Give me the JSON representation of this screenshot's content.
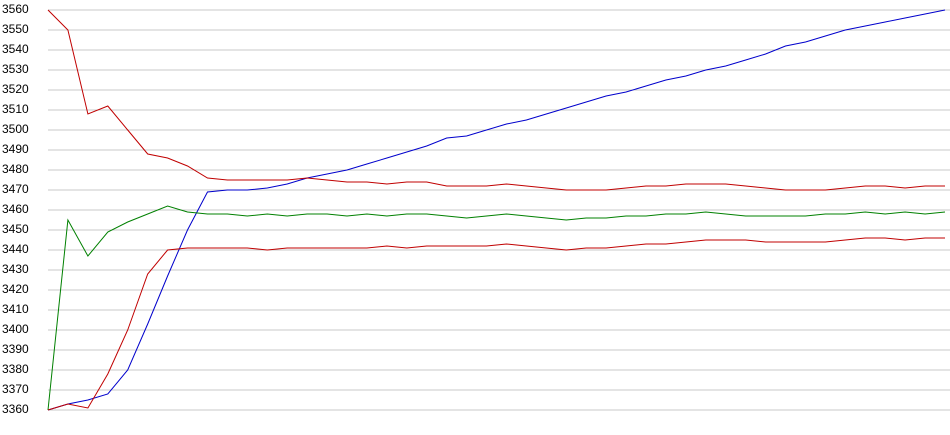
{
  "chart_data": {
    "type": "line",
    "categories": [
      null,
      null,
      null,
      null,
      null,
      null,
      null,
      null,
      null,
      null,
      null,
      null,
      null,
      null,
      null,
      null,
      null,
      null,
      null,
      null,
      null,
      null,
      null,
      null,
      null,
      null,
      null,
      null,
      null,
      null,
      null,
      null,
      null,
      null,
      null,
      null,
      null,
      null,
      null,
      null,
      null,
      null,
      null,
      null,
      null,
      null
    ],
    "series": [
      {
        "color": "#0000cc",
        "values": [
          3360,
          3363,
          3365,
          3368,
          3380,
          3403,
          3427,
          3450,
          3469,
          3470,
          3470,
          3471,
          3473,
          3476,
          3478,
          3480,
          3483,
          3486,
          3489,
          3492,
          3496,
          3497,
          3500,
          3503,
          3505,
          3508,
          3511,
          3514,
          3517,
          3519,
          3522,
          3525,
          3527,
          3530,
          3532,
          3535,
          3538,
          3542,
          3544,
          3547,
          3550,
          3552,
          3554,
          3556,
          3558,
          3560
        ]
      },
      {
        "color": "#c00000",
        "values": [
          3560,
          3550,
          3508,
          3512,
          3500,
          3488,
          3486,
          3482,
          3476,
          3475,
          3475,
          3475,
          3475,
          3476,
          3475,
          3474,
          3474,
          3473,
          3474,
          3474,
          3472,
          3472,
          3472,
          3473,
          3472,
          3471,
          3470,
          3470,
          3470,
          3471,
          3472,
          3472,
          3473,
          3473,
          3473,
          3472,
          3471,
          3470,
          3470,
          3470,
          3471,
          3472,
          3472,
          3471,
          3472,
          3472
        ]
      },
      {
        "color": "#008000",
        "values": [
          3360,
          3455,
          3437,
          3449,
          3454,
          3458,
          3462,
          3459,
          3458,
          3458,
          3457,
          3458,
          3457,
          3458,
          3458,
          3457,
          3458,
          3457,
          3458,
          3458,
          3457,
          3456,
          3457,
          3458,
          3457,
          3456,
          3455,
          3456,
          3456,
          3457,
          3457,
          3458,
          3458,
          3459,
          3458,
          3457,
          3457,
          3457,
          3457,
          3458,
          3458,
          3459,
          3458,
          3459,
          3458,
          3459
        ]
      },
      {
        "color": "#c00000",
        "values": [
          3360,
          3363,
          3361,
          3378,
          3400,
          3428,
          3440,
          3441,
          3441,
          3441,
          3441,
          3440,
          3441,
          3441,
          3441,
          3441,
          3441,
          3442,
          3441,
          3442,
          3442,
          3442,
          3442,
          3443,
          3442,
          3441,
          3440,
          3441,
          3441,
          3442,
          3443,
          3443,
          3444,
          3445,
          3445,
          3445,
          3444,
          3444,
          3444,
          3444,
          3445,
          3446,
          3446,
          3445,
          3446,
          3446
        ]
      }
    ],
    "ylim": [
      3360,
      3560
    ],
    "yticks": [
      3360,
      3370,
      3380,
      3390,
      3400,
      3410,
      3420,
      3430,
      3440,
      3450,
      3460,
      3470,
      3480,
      3490,
      3500,
      3510,
      3520,
      3530,
      3540,
      3550,
      3560
    ],
    "grid": true
  }
}
